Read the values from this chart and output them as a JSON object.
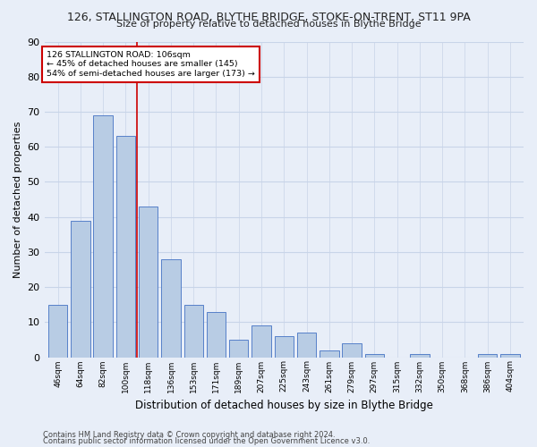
{
  "title": "126, STALLINGTON ROAD, BLYTHE BRIDGE, STOKE-ON-TRENT, ST11 9PA",
  "subtitle": "Size of property relative to detached houses in Blythe Bridge",
  "xlabel": "Distribution of detached houses by size in Blythe Bridge",
  "ylabel": "Number of detached properties",
  "footnote1": "Contains HM Land Registry data © Crown copyright and database right 2024.",
  "footnote2": "Contains public sector information licensed under the Open Government Licence v3.0.",
  "categories": [
    "46sqm",
    "64sqm",
    "82sqm",
    "100sqm",
    "118sqm",
    "136sqm",
    "153sqm",
    "171sqm",
    "189sqm",
    "207sqm",
    "225sqm",
    "243sqm",
    "261sqm",
    "279sqm",
    "297sqm",
    "315sqm",
    "332sqm",
    "350sqm",
    "368sqm",
    "386sqm",
    "404sqm"
  ],
  "values": [
    15,
    39,
    69,
    63,
    43,
    28,
    15,
    13,
    5,
    9,
    6,
    7,
    2,
    4,
    1,
    0,
    1,
    0,
    0,
    1,
    1
  ],
  "bar_color": "#b8cce4",
  "bar_edge_color": "#4472c4",
  "property_line_x": 3.5,
  "annotation_text1": "126 STALLINGTON ROAD: 106sqm",
  "annotation_text2": "← 45% of detached houses are smaller (145)",
  "annotation_text3": "54% of semi-detached houses are larger (173) →",
  "annotation_box_color": "#ffffff",
  "annotation_box_edge_color": "#cc0000",
  "vline_color": "#cc0000",
  "grid_color": "#c8d4e8",
  "bg_color": "#e8eef8",
  "ylim": [
    0,
    90
  ],
  "yticks": [
    0,
    10,
    20,
    30,
    40,
    50,
    60,
    70,
    80,
    90
  ]
}
